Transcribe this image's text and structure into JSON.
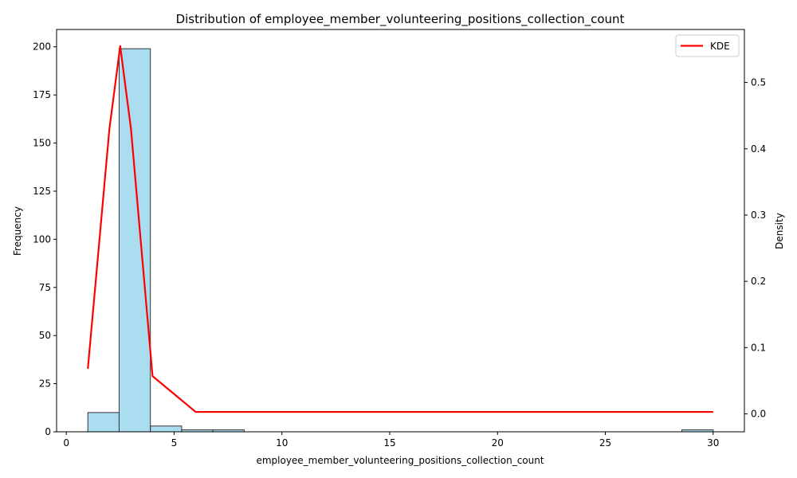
{
  "chart_data": {
    "type": "bar",
    "title": "Distribution of employee_member_volunteering_positions_collection_count",
    "xlabel": "employee_member_volunteering_positions_collection_count",
    "ylabel": "Frequency",
    "y2label": "Density",
    "xlim": [
      -0.45,
      31.45
    ],
    "ylim": [
      0,
      209
    ],
    "y2lim": [
      -0.027,
      0.58
    ],
    "xticks": [
      0,
      5,
      10,
      15,
      20,
      25,
      30
    ],
    "yticks": [
      0,
      25,
      50,
      75,
      100,
      125,
      150,
      175,
      200
    ],
    "y2ticks": [
      0.0,
      0.1,
      0.2,
      0.3,
      0.4,
      0.5
    ],
    "y2tick_labels": [
      "0.0",
      "0.1",
      "0.2",
      "0.3",
      "0.4",
      "0.5"
    ],
    "bar_color": "#87CEEB",
    "bar_edge_color": "#333333",
    "histogram": {
      "bins": [
        {
          "start": 1.0,
          "end": 2.45,
          "count": 10
        },
        {
          "start": 2.45,
          "end": 3.9,
          "count": 199
        },
        {
          "start": 3.9,
          "end": 5.35,
          "count": 3
        },
        {
          "start": 5.35,
          "end": 6.8,
          "count": 1
        },
        {
          "start": 6.8,
          "end": 8.25,
          "count": 1
        },
        {
          "start": 28.55,
          "end": 30.0,
          "count": 1
        }
      ]
    },
    "series": [
      {
        "name": "KDE",
        "color": "#ff0000",
        "x": [
          1,
          2,
          2.5,
          3,
          4,
          6,
          30
        ],
        "values": [
          0.068,
          0.43,
          0.555,
          0.43,
          0.057,
          0.003,
          0.003
        ]
      }
    ],
    "legend": {
      "position": "top-right",
      "entries": [
        "KDE"
      ]
    }
  }
}
